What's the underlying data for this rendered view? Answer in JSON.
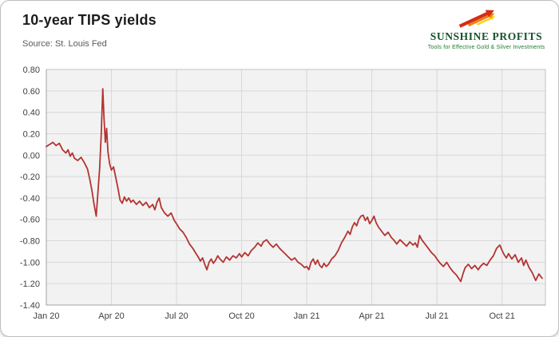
{
  "header": {
    "title": "10-year TIPS yields",
    "source": "Source: St. Louis Fed"
  },
  "logo": {
    "name": "SUNSHINE PROFITS",
    "tagline": "Tools for Effective Gold & Silver Investments",
    "colors": {
      "red": "#d42e12",
      "orange": "#f08019",
      "yellow": "#ffcf01",
      "green": "#14532d"
    }
  },
  "chart_data": {
    "type": "line",
    "title": "10-year TIPS yields",
    "source": "Source: St. Louis Fed",
    "x_unit": "months since Jan 2020",
    "x_range": [
      0,
      23
    ],
    "ylim": [
      -1.4,
      0.8
    ],
    "y_tick_step": 0.2,
    "x_ticks": [
      {
        "pos": 0,
        "label": "Jan 20"
      },
      {
        "pos": 3,
        "label": "Apr 20"
      },
      {
        "pos": 6,
        "label": "Jul 20"
      },
      {
        "pos": 9,
        "label": "Oct 20"
      },
      {
        "pos": 12,
        "label": "Jan 21"
      },
      {
        "pos": 15,
        "label": "Apr 21"
      },
      {
        "pos": 18,
        "label": "Jul 21"
      },
      {
        "pos": 21,
        "label": "Oct 21"
      }
    ],
    "grid": true,
    "legend": "none",
    "line_color": "#b33431",
    "plot_bg": "#f2f2f2",
    "grid_color": "#d7d7d7",
    "axis_color": "#c2c2c2",
    "series": [
      {
        "name": "10-year TIPS yield (%)",
        "points": [
          [
            0.0,
            0.08
          ],
          [
            0.15,
            0.1
          ],
          [
            0.3,
            0.12
          ],
          [
            0.45,
            0.09
          ],
          [
            0.6,
            0.11
          ],
          [
            0.75,
            0.05
          ],
          [
            0.9,
            0.02
          ],
          [
            1.0,
            0.05
          ],
          [
            1.1,
            -0.01
          ],
          [
            1.2,
            0.02
          ],
          [
            1.3,
            -0.03
          ],
          [
            1.45,
            -0.05
          ],
          [
            1.6,
            -0.02
          ],
          [
            1.75,
            -0.07
          ],
          [
            1.9,
            -0.13
          ],
          [
            2.0,
            -0.22
          ],
          [
            2.1,
            -0.33
          ],
          [
            2.2,
            -0.46
          ],
          [
            2.3,
            -0.57
          ],
          [
            2.38,
            -0.34
          ],
          [
            2.46,
            -0.12
          ],
          [
            2.53,
            0.18
          ],
          [
            2.6,
            0.62
          ],
          [
            2.66,
            0.34
          ],
          [
            2.72,
            0.12
          ],
          [
            2.78,
            0.25
          ],
          [
            2.84,
            0.03
          ],
          [
            2.92,
            -0.08
          ],
          [
            3.0,
            -0.14
          ],
          [
            3.1,
            -0.11
          ],
          [
            3.2,
            -0.21
          ],
          [
            3.3,
            -0.31
          ],
          [
            3.4,
            -0.42
          ],
          [
            3.5,
            -0.45
          ],
          [
            3.6,
            -0.39
          ],
          [
            3.7,
            -0.43
          ],
          [
            3.8,
            -0.4
          ],
          [
            3.9,
            -0.44
          ],
          [
            4.0,
            -0.42
          ],
          [
            4.15,
            -0.46
          ],
          [
            4.3,
            -0.43
          ],
          [
            4.45,
            -0.47
          ],
          [
            4.6,
            -0.44
          ],
          [
            4.75,
            -0.49
          ],
          [
            4.9,
            -0.46
          ],
          [
            5.0,
            -0.51
          ],
          [
            5.1,
            -0.44
          ],
          [
            5.2,
            -0.4
          ],
          [
            5.3,
            -0.49
          ],
          [
            5.45,
            -0.54
          ],
          [
            5.6,
            -0.57
          ],
          [
            5.75,
            -0.54
          ],
          [
            5.9,
            -0.61
          ],
          [
            6.0,
            -0.64
          ],
          [
            6.15,
            -0.69
          ],
          [
            6.3,
            -0.72
          ],
          [
            6.45,
            -0.77
          ],
          [
            6.6,
            -0.83
          ],
          [
            6.75,
            -0.87
          ],
          [
            6.9,
            -0.92
          ],
          [
            7.0,
            -0.95
          ],
          [
            7.1,
            -0.99
          ],
          [
            7.2,
            -0.96
          ],
          [
            7.3,
            -1.02
          ],
          [
            7.4,
            -1.07
          ],
          [
            7.5,
            -1.0
          ],
          [
            7.6,
            -0.97
          ],
          [
            7.7,
            -1.01
          ],
          [
            7.8,
            -0.98
          ],
          [
            7.9,
            -0.94
          ],
          [
            8.0,
            -0.97
          ],
          [
            8.15,
            -1.0
          ],
          [
            8.3,
            -0.95
          ],
          [
            8.45,
            -0.98
          ],
          [
            8.6,
            -0.94
          ],
          [
            8.75,
            -0.96
          ],
          [
            8.9,
            -0.92
          ],
          [
            9.0,
            -0.95
          ],
          [
            9.15,
            -0.91
          ],
          [
            9.3,
            -0.94
          ],
          [
            9.45,
            -0.89
          ],
          [
            9.6,
            -0.86
          ],
          [
            9.75,
            -0.82
          ],
          [
            9.9,
            -0.85
          ],
          [
            10.0,
            -0.81
          ],
          [
            10.15,
            -0.79
          ],
          [
            10.3,
            -0.83
          ],
          [
            10.45,
            -0.86
          ],
          [
            10.6,
            -0.83
          ],
          [
            10.75,
            -0.87
          ],
          [
            10.9,
            -0.9
          ],
          [
            11.0,
            -0.92
          ],
          [
            11.15,
            -0.95
          ],
          [
            11.3,
            -0.98
          ],
          [
            11.45,
            -0.96
          ],
          [
            11.6,
            -1.0
          ],
          [
            11.75,
            -1.02
          ],
          [
            11.9,
            -1.05
          ],
          [
            12.0,
            -1.04
          ],
          [
            12.1,
            -1.07
          ],
          [
            12.2,
            -1.0
          ],
          [
            12.3,
            -0.97
          ],
          [
            12.4,
            -1.02
          ],
          [
            12.5,
            -0.98
          ],
          [
            12.6,
            -1.03
          ],
          [
            12.7,
            -1.05
          ],
          [
            12.8,
            -1.01
          ],
          [
            12.9,
            -1.04
          ],
          [
            13.0,
            -1.02
          ],
          [
            13.15,
            -0.97
          ],
          [
            13.3,
            -0.94
          ],
          [
            13.45,
            -0.89
          ],
          [
            13.6,
            -0.82
          ],
          [
            13.75,
            -0.77
          ],
          [
            13.9,
            -0.71
          ],
          [
            14.0,
            -0.74
          ],
          [
            14.1,
            -0.67
          ],
          [
            14.2,
            -0.63
          ],
          [
            14.3,
            -0.66
          ],
          [
            14.4,
            -0.6
          ],
          [
            14.5,
            -0.57
          ],
          [
            14.6,
            -0.56
          ],
          [
            14.7,
            -0.61
          ],
          [
            14.8,
            -0.58
          ],
          [
            14.9,
            -0.64
          ],
          [
            15.0,
            -0.61
          ],
          [
            15.1,
            -0.57
          ],
          [
            15.2,
            -0.63
          ],
          [
            15.3,
            -0.67
          ],
          [
            15.45,
            -0.71
          ],
          [
            15.6,
            -0.75
          ],
          [
            15.75,
            -0.72
          ],
          [
            15.9,
            -0.77
          ],
          [
            16.0,
            -0.79
          ],
          [
            16.15,
            -0.83
          ],
          [
            16.3,
            -0.79
          ],
          [
            16.45,
            -0.82
          ],
          [
            16.6,
            -0.85
          ],
          [
            16.75,
            -0.81
          ],
          [
            16.9,
            -0.84
          ],
          [
            17.0,
            -0.82
          ],
          [
            17.1,
            -0.86
          ],
          [
            17.2,
            -0.75
          ],
          [
            17.3,
            -0.79
          ],
          [
            17.45,
            -0.83
          ],
          [
            17.6,
            -0.87
          ],
          [
            17.75,
            -0.91
          ],
          [
            17.9,
            -0.94
          ],
          [
            18.0,
            -0.97
          ],
          [
            18.15,
            -1.01
          ],
          [
            18.3,
            -1.04
          ],
          [
            18.45,
            -1.0
          ],
          [
            18.6,
            -1.05
          ],
          [
            18.75,
            -1.09
          ],
          [
            18.9,
            -1.12
          ],
          [
            19.0,
            -1.15
          ],
          [
            19.1,
            -1.18
          ],
          [
            19.2,
            -1.11
          ],
          [
            19.3,
            -1.05
          ],
          [
            19.45,
            -1.02
          ],
          [
            19.6,
            -1.06
          ],
          [
            19.75,
            -1.03
          ],
          [
            19.9,
            -1.07
          ],
          [
            20.0,
            -1.04
          ],
          [
            20.15,
            -1.01
          ],
          [
            20.3,
            -1.03
          ],
          [
            20.45,
            -0.98
          ],
          [
            20.6,
            -0.94
          ],
          [
            20.75,
            -0.87
          ],
          [
            20.9,
            -0.84
          ],
          [
            21.0,
            -0.89
          ],
          [
            21.1,
            -0.93
          ],
          [
            21.2,
            -0.96
          ],
          [
            21.3,
            -0.92
          ],
          [
            21.45,
            -0.97
          ],
          [
            21.6,
            -0.93
          ],
          [
            21.75,
            -1.0
          ],
          [
            21.9,
            -0.96
          ],
          [
            22.0,
            -1.03
          ],
          [
            22.1,
            -0.98
          ],
          [
            22.25,
            -1.05
          ],
          [
            22.4,
            -1.1
          ],
          [
            22.55,
            -1.17
          ],
          [
            22.7,
            -1.11
          ],
          [
            22.85,
            -1.15
          ]
        ]
      }
    ]
  }
}
